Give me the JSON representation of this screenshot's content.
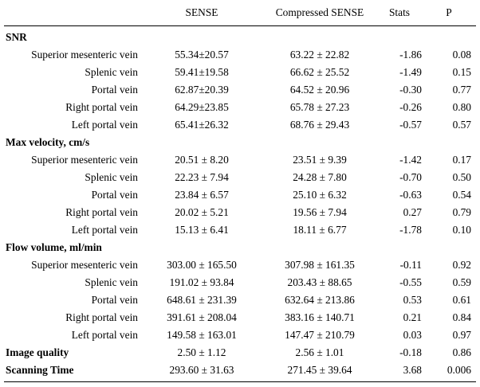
{
  "header": {
    "col0": "",
    "col1": "SENSE",
    "col2": "Compressed SENSE",
    "col3": "Stats",
    "col4": "P"
  },
  "sections": [
    {
      "title": "SNR",
      "rows": [
        {
          "label": "Superior mesenteric vein",
          "sense": "55.34±20.57",
          "compressed": "63.22 ± 22.82",
          "stats": "-1.86",
          "p": "0.08"
        },
        {
          "label": "Splenic vein",
          "sense": "59.41±19.58",
          "compressed": "66.62 ± 25.52",
          "stats": "-1.49",
          "p": "0.15"
        },
        {
          "label": "Portal vein",
          "sense": "62.87±20.39",
          "compressed": "64.52 ± 20.96",
          "stats": "-0.30",
          "p": "0.77"
        },
        {
          "label": "Right portal vein",
          "sense": "64.29±23.85",
          "compressed": "65.78 ± 27.23",
          "stats": "-0.26",
          "p": "0.80"
        },
        {
          "label": "Left portal vein",
          "sense": "65.41±26.32",
          "compressed": "68.76 ± 29.43",
          "stats": "-0.57",
          "p": "0.57"
        }
      ]
    },
    {
      "title": "Max velocity, cm/s",
      "rows": [
        {
          "label": "Superior mesenteric vein",
          "sense": "20.51 ± 8.20",
          "compressed": "23.51 ± 9.39",
          "stats": "-1.42",
          "p": "0.17"
        },
        {
          "label": "Splenic vein",
          "sense": "22.23 ± 7.94",
          "compressed": "24.28 ± 7.80",
          "stats": "-0.70",
          "p": "0.50"
        },
        {
          "label": "Portal vein",
          "sense": "23.84 ± 6.57",
          "compressed": "25.10 ± 6.32",
          "stats": "-0.63",
          "p": "0.54"
        },
        {
          "label": "Right portal vein",
          "sense": "20.02 ± 5.21",
          "compressed": "19.56 ± 7.94",
          "stats": "0.27",
          "p": "0.79"
        },
        {
          "label": "Left portal vein",
          "sense": "15.13 ± 6.41",
          "compressed": "18.11 ± 6.77",
          "stats": "-1.78",
          "p": "0.10"
        }
      ]
    },
    {
      "title": "Flow volume, ml/min",
      "rows": [
        {
          "label": "Superior mesenteric vein",
          "sense": "303.00 ± 165.50",
          "compressed": "307.98 ± 161.35",
          "stats": "-0.11",
          "p": "0.92"
        },
        {
          "label": "Splenic vein",
          "sense": "191.02 ± 93.84",
          "compressed": "203.43 ± 88.65",
          "stats": "-0.55",
          "p": "0.59"
        },
        {
          "label": "Portal vein",
          "sense": "648.61 ± 231.39",
          "compressed": "632.64 ± 213.86",
          "stats": "0.53",
          "p": "0.61"
        },
        {
          "label": "Right portal vein",
          "sense": "391.61 ± 208.04",
          "compressed": "383.16 ± 140.71",
          "stats": "0.21",
          "p": "0.84"
        },
        {
          "label": "Left portal vein",
          "sense": "149.58 ± 163.01",
          "compressed": "147.47 ± 210.79",
          "stats": "0.03",
          "p": "0.97"
        }
      ]
    }
  ],
  "footer_rows": [
    {
      "label": "Image quality",
      "sense": "2.50 ± 1.12",
      "compressed": "2.56 ± 1.01",
      "stats": "-0.18",
      "p": "0.86"
    },
    {
      "label": "Scanning Time",
      "sense": "293.60 ± 31.63",
      "compressed": "271.45 ± 39.64",
      "stats": "3.68",
      "p": "0.006"
    }
  ]
}
